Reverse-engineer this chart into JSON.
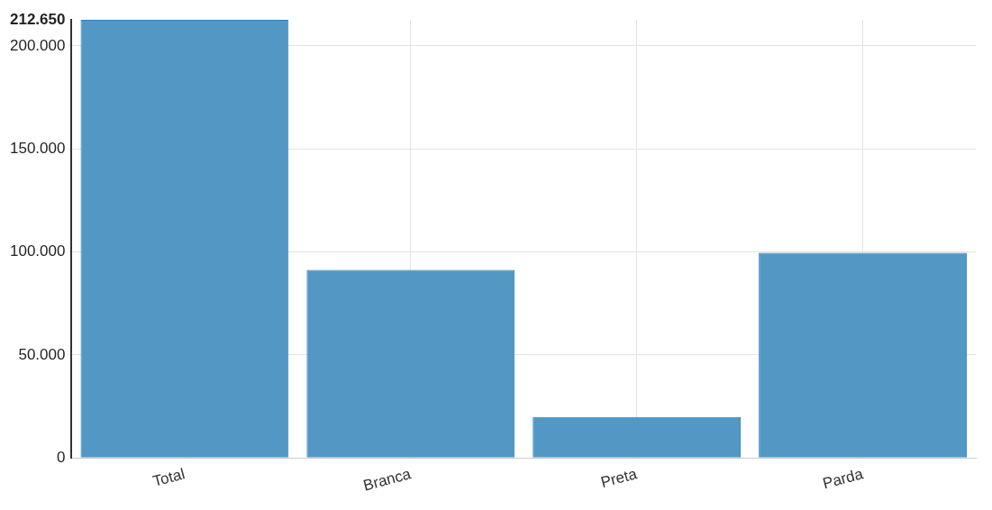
{
  "chart_data": {
    "type": "bar",
    "categories": [
      "Total",
      "Branca",
      "Preta",
      "Parda"
    ],
    "values": [
      212650,
      91300,
      19900,
      99600
    ],
    "color": "#5397c5",
    "ylim": [
      0,
      212650
    ],
    "yticks": [
      0,
      {
        "value": 50000,
        "label": "50.000"
      },
      {
        "value": 100000,
        "label": "100.000"
      },
      {
        "value": 150000,
        "label": "150.000"
      },
      {
        "value": 200000,
        "label": "200.000"
      },
      {
        "value": 212650,
        "label": "212.650"
      }
    ],
    "grid": true,
    "legend": false
  }
}
